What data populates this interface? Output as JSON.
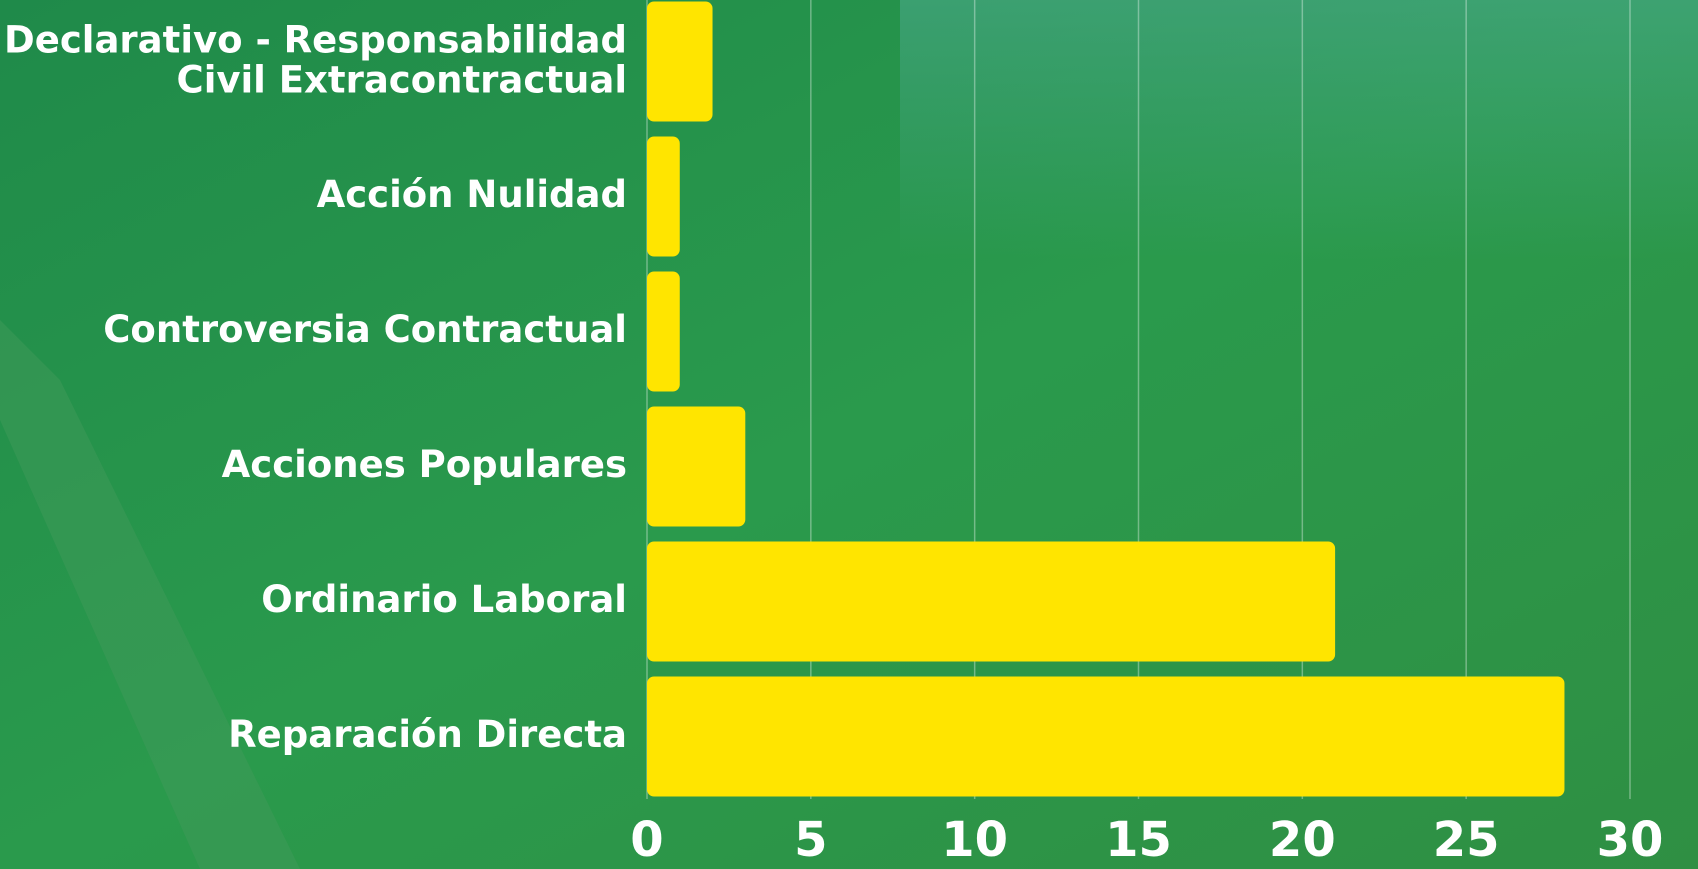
{
  "chart_data": {
    "type": "bar",
    "orientation": "horizontal",
    "categories": [
      "Declarativo - Responsabilidad\nCivil  Extracontractual",
      "Acción Nulidad",
      "Controversia Contractual",
      "Acciones Populares",
      "Ordinario Laboral",
      "Reparación Directa"
    ],
    "values": [
      2,
      1,
      1,
      3,
      21,
      28
    ],
    "color": "#ffe500",
    "xlim": [
      0,
      30
    ],
    "xticks": [
      0,
      5,
      10,
      15,
      20,
      25,
      30
    ],
    "grid": true
  }
}
